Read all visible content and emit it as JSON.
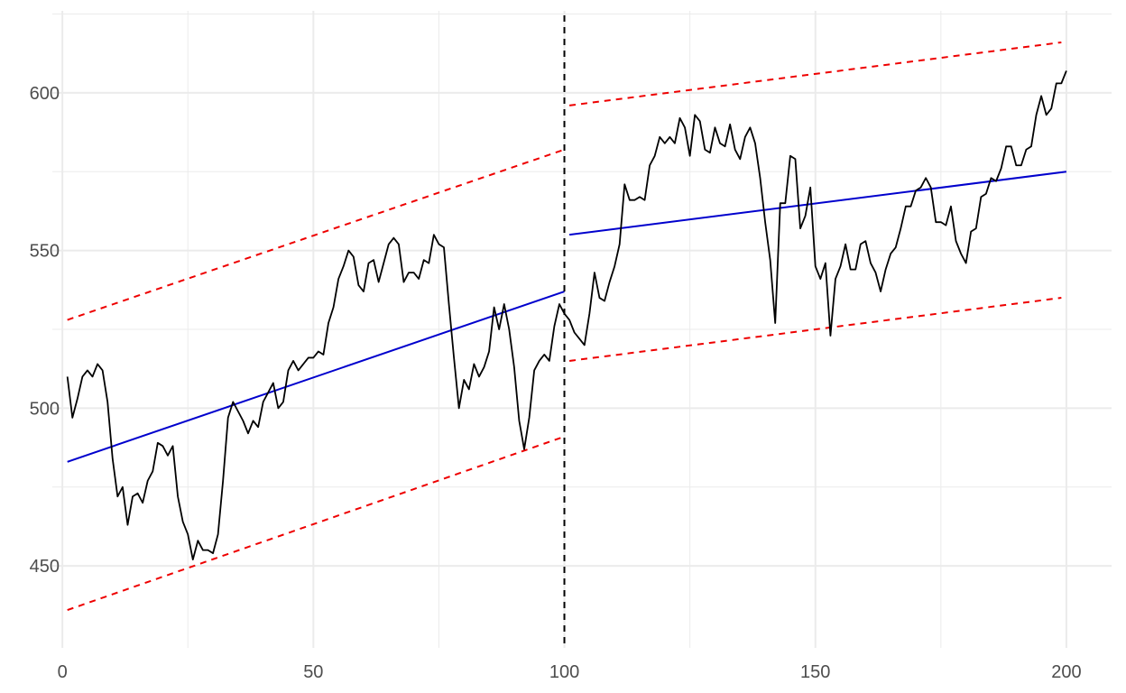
{
  "chart_data": {
    "type": "line",
    "title": "",
    "xlabel": "",
    "ylabel": "",
    "xlim": [
      -2,
      209
    ],
    "ylim": [
      424,
      626
    ],
    "grid": true,
    "legend": "none",
    "x_ticks": [
      0,
      50,
      100,
      150,
      200
    ],
    "y_ticks": [
      450,
      500,
      550,
      600
    ],
    "x_tick_labels": [
      "0",
      "50",
      "100",
      "150",
      "200"
    ],
    "y_tick_labels": [
      "450",
      "500",
      "550",
      "600"
    ],
    "x_minor_ticks": [
      25,
      75,
      125,
      175
    ],
    "y_minor_ticks": [
      475,
      525,
      575,
      625
    ],
    "colors": {
      "series": "#000000",
      "trend": "#0000cd",
      "bounds": "#ee0000",
      "changepoint": "#000000",
      "grid": "#ebebeb"
    },
    "changepoint_x": 100,
    "series": [
      {
        "points": [
          [
            1,
            510
          ],
          [
            2,
            497
          ],
          [
            3,
            503
          ],
          [
            4,
            510
          ],
          [
            5,
            512
          ],
          [
            6,
            510
          ],
          [
            7,
            514
          ],
          [
            8,
            512
          ],
          [
            9,
            502
          ],
          [
            10,
            484
          ],
          [
            11,
            472
          ],
          [
            12,
            475
          ],
          [
            13,
            463
          ],
          [
            14,
            472
          ],
          [
            15,
            473
          ],
          [
            16,
            470
          ],
          [
            17,
            477
          ],
          [
            18,
            480
          ],
          [
            19,
            489
          ],
          [
            20,
            488
          ],
          [
            21,
            485
          ],
          [
            22,
            488
          ],
          [
            23,
            472
          ],
          [
            24,
            464
          ],
          [
            25,
            460
          ],
          [
            26,
            452
          ],
          [
            27,
            458
          ],
          [
            28,
            455
          ],
          [
            29,
            455
          ],
          [
            30,
            454
          ],
          [
            31,
            460
          ],
          [
            32,
            477
          ],
          [
            33,
            497
          ],
          [
            34,
            502
          ],
          [
            35,
            499
          ],
          [
            36,
            496
          ],
          [
            37,
            492
          ],
          [
            38,
            496
          ],
          [
            39,
            494
          ],
          [
            40,
            502
          ],
          [
            41,
            505
          ],
          [
            42,
            508
          ],
          [
            43,
            500
          ],
          [
            44,
            502
          ],
          [
            45,
            512
          ],
          [
            46,
            515
          ],
          [
            47,
            512
          ],
          [
            48,
            514
          ],
          [
            49,
            516
          ],
          [
            50,
            516
          ],
          [
            51,
            518
          ],
          [
            52,
            517
          ],
          [
            53,
            527
          ],
          [
            54,
            532
          ],
          [
            55,
            541
          ],
          [
            56,
            545
          ],
          [
            57,
            550
          ],
          [
            58,
            548
          ],
          [
            59,
            539
          ],
          [
            60,
            537
          ],
          [
            61,
            546
          ],
          [
            62,
            547
          ],
          [
            63,
            540
          ],
          [
            64,
            546
          ],
          [
            65,
            552
          ],
          [
            66,
            554
          ],
          [
            67,
            552
          ],
          [
            68,
            540
          ],
          [
            69,
            543
          ],
          [
            70,
            543
          ],
          [
            71,
            541
          ],
          [
            72,
            547
          ],
          [
            73,
            546
          ],
          [
            74,
            555
          ],
          [
            75,
            552
          ],
          [
            76,
            551
          ],
          [
            77,
            533
          ],
          [
            78,
            516
          ],
          [
            79,
            500
          ],
          [
            80,
            509
          ],
          [
            81,
            506
          ],
          [
            82,
            514
          ],
          [
            83,
            510
          ],
          [
            84,
            513
          ],
          [
            85,
            518
          ],
          [
            86,
            532
          ],
          [
            87,
            525
          ],
          [
            88,
            533
          ],
          [
            89,
            525
          ],
          [
            90,
            513
          ],
          [
            91,
            496
          ],
          [
            92,
            487
          ],
          [
            93,
            497
          ],
          [
            94,
            512
          ],
          [
            95,
            515
          ],
          [
            96,
            517
          ],
          [
            97,
            515
          ],
          [
            98,
            526
          ],
          [
            99,
            533
          ],
          [
            100,
            530
          ],
          [
            101,
            528
          ],
          [
            102,
            524
          ],
          [
            103,
            522
          ],
          [
            104,
            520
          ],
          [
            105,
            530
          ],
          [
            106,
            543
          ],
          [
            107,
            535
          ],
          [
            108,
            534
          ],
          [
            109,
            540
          ],
          [
            110,
            545
          ],
          [
            111,
            552
          ],
          [
            112,
            571
          ],
          [
            113,
            566
          ],
          [
            114,
            566
          ],
          [
            115,
            567
          ],
          [
            116,
            566
          ],
          [
            117,
            577
          ],
          [
            118,
            580
          ],
          [
            119,
            586
          ],
          [
            120,
            584
          ],
          [
            121,
            586
          ],
          [
            122,
            584
          ],
          [
            123,
            592
          ],
          [
            124,
            589
          ],
          [
            125,
            580
          ],
          [
            126,
            593
          ],
          [
            127,
            591
          ],
          [
            128,
            582
          ],
          [
            129,
            581
          ],
          [
            130,
            589
          ],
          [
            131,
            584
          ],
          [
            132,
            583
          ],
          [
            133,
            590
          ],
          [
            134,
            582
          ],
          [
            135,
            579
          ],
          [
            136,
            586
          ],
          [
            137,
            589
          ],
          [
            138,
            584
          ],
          [
            139,
            573
          ],
          [
            140,
            559
          ],
          [
            141,
            547
          ],
          [
            142,
            527
          ],
          [
            143,
            565
          ],
          [
            144,
            565
          ],
          [
            145,
            580
          ],
          [
            146,
            579
          ],
          [
            147,
            557
          ],
          [
            148,
            561
          ],
          [
            149,
            570
          ],
          [
            150,
            545
          ],
          [
            151,
            541
          ],
          [
            152,
            546
          ],
          [
            153,
            523
          ],
          [
            154,
            541
          ],
          [
            155,
            545
          ],
          [
            156,
            552
          ],
          [
            157,
            544
          ],
          [
            158,
            544
          ],
          [
            159,
            552
          ],
          [
            160,
            553
          ],
          [
            161,
            546
          ],
          [
            162,
            543
          ],
          [
            163,
            537
          ],
          [
            164,
            544
          ],
          [
            165,
            549
          ],
          [
            166,
            551
          ],
          [
            167,
            557
          ],
          [
            168,
            564
          ],
          [
            169,
            564
          ],
          [
            170,
            569
          ],
          [
            171,
            570
          ],
          [
            172,
            573
          ],
          [
            173,
            570
          ],
          [
            174,
            559
          ],
          [
            175,
            559
          ],
          [
            176,
            558
          ],
          [
            177,
            564
          ],
          [
            178,
            553
          ],
          [
            179,
            549
          ],
          [
            180,
            546
          ],
          [
            181,
            556
          ],
          [
            182,
            557
          ],
          [
            183,
            567
          ],
          [
            184,
            568
          ],
          [
            185,
            573
          ],
          [
            186,
            572
          ],
          [
            187,
            576
          ],
          [
            188,
            583
          ],
          [
            189,
            583
          ],
          [
            190,
            577
          ],
          [
            191,
            577
          ],
          [
            192,
            582
          ],
          [
            193,
            583
          ],
          [
            194,
            593
          ],
          [
            195,
            599
          ],
          [
            196,
            593
          ],
          [
            197,
            595
          ],
          [
            198,
            603
          ],
          [
            199,
            603
          ],
          [
            200,
            607
          ]
        ]
      },
      {
        "style": "solid",
        "segments": [
          [
            [
              1,
              483
            ],
            [
              100,
              537
            ]
          ],
          [
            [
              101,
              555
            ],
            [
              200,
              575
            ]
          ]
        ]
      },
      {
        "style": "dashed",
        "segments": [
          [
            [
              1,
              528
            ],
            [
              100,
              582
            ]
          ],
          [
            [
              1,
              436
            ],
            [
              100,
              491
            ]
          ],
          [
            [
              101,
              596
            ],
            [
              199,
              616
            ]
          ],
          [
            [
              101,
              515
            ],
            [
              199,
              535
            ]
          ]
        ]
      }
    ]
  }
}
